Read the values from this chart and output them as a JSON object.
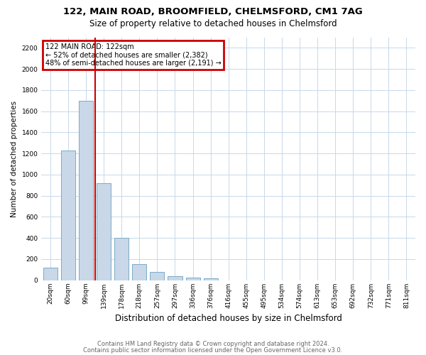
{
  "title1": "122, MAIN ROAD, BROOMFIELD, CHELMSFORD, CM1 7AG",
  "title2": "Size of property relative to detached houses in Chelmsford",
  "xlabel": "Distribution of detached houses by size in Chelmsford",
  "ylabel": "Number of detached properties",
  "categories": [
    "20sqm",
    "60sqm",
    "99sqm",
    "139sqm",
    "178sqm",
    "218sqm",
    "257sqm",
    "297sqm",
    "336sqm",
    "376sqm",
    "416sqm",
    "455sqm",
    "495sqm",
    "534sqm",
    "574sqm",
    "613sqm",
    "653sqm",
    "692sqm",
    "732sqm",
    "771sqm",
    "811sqm"
  ],
  "values": [
    120,
    1230,
    1700,
    920,
    400,
    150,
    75,
    40,
    25,
    20,
    0,
    0,
    0,
    0,
    0,
    0,
    0,
    0,
    0,
    0,
    0
  ],
  "bar_color": "#c8d8e8",
  "bar_edge_color": "#7aaac8",
  "vline_x_index": 2.5,
  "vline_color": "#cc0000",
  "annotation_text": "122 MAIN ROAD: 122sqm\n← 52% of detached houses are smaller (2,382)\n48% of semi-detached houses are larger (2,191) →",
  "annotation_box_color": "#cc0000",
  "annotation_text_color": "#000000",
  "ylim": [
    0,
    2300
  ],
  "footnote1": "Contains HM Land Registry data © Crown copyright and database right 2024.",
  "footnote2": "Contains public sector information licensed under the Open Government Licence v3.0.",
  "bg_color": "#ffffff",
  "grid_color": "#c8d8e8",
  "title1_fontsize": 9.5,
  "title2_fontsize": 8.5,
  "xlabel_fontsize": 8.5,
  "ylabel_fontsize": 7.5,
  "tick_fontsize": 6.5,
  "annotation_fontsize": 7.0,
  "footnote_fontsize": 6.0
}
